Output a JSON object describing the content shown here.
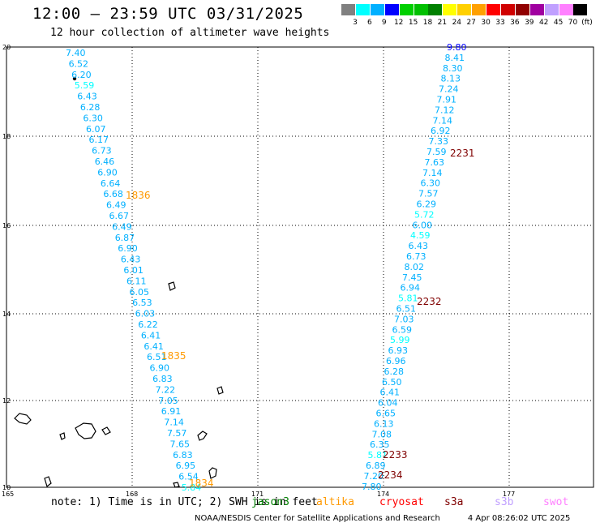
{
  "header": {
    "title": "12:00 – 23:59 UTC 03/31/2025",
    "subtitle": "12 hour collection of altimeter wave heights"
  },
  "legend": {
    "unit": "(ft)",
    "bins": [
      {
        "label": "3",
        "color": "#808080"
      },
      {
        "label": "6",
        "color": "#00ffff"
      },
      {
        "label": "9",
        "color": "#00b0ff"
      },
      {
        "label": "12",
        "color": "#0000ff"
      },
      {
        "label": "15",
        "color": "#00d000"
      },
      {
        "label": "18",
        "color": "#00c000"
      },
      {
        "label": "21",
        "color": "#008000"
      },
      {
        "label": "24",
        "color": "#ffff00"
      },
      {
        "label": "27",
        "color": "#ffd000"
      },
      {
        "label": "30",
        "color": "#ffa000"
      },
      {
        "label": "33",
        "color": "#ff0000"
      },
      {
        "label": "36",
        "color": "#d00000"
      },
      {
        "label": "39",
        "color": "#900000"
      },
      {
        "label": "42",
        "color": "#a000a0"
      },
      {
        "label": "45",
        "color": "#c0a0ff"
      },
      {
        "label": "70",
        "color": "#ff80ff"
      },
      {
        "label": "",
        "color": "#000000"
      }
    ]
  },
  "map": {
    "lat_ticks": [
      "20",
      "18",
      "16",
      "14",
      "12",
      "10"
    ],
    "lon_ticks": [
      "165",
      "168",
      "171",
      "174",
      "177"
    ],
    "track_west": {
      "values": [
        "7.40",
        "6.52",
        "6.20",
        "5.59",
        "6.43",
        "6.28",
        "6.30",
        "6.07",
        "6.17",
        "6.73",
        "6.46",
        "6.90",
        "6.64",
        "6.68",
        "6.49",
        "6.67",
        "6.49",
        "6.87",
        "6.90",
        "6.43",
        "6.01",
        "6.11",
        "6.05",
        "6.53",
        "6.03",
        "6.22",
        "6.41",
        "6.41",
        "6.51",
        "6.90",
        "6.83",
        "7.22",
        "7.05",
        "6.91",
        "7.14",
        "7.57",
        "7.65",
        "6.83",
        "6.95",
        "6.54",
        "5.84"
      ],
      "time_labels": [
        {
          "text": "1836",
          "color": "#ff9900"
        },
        {
          "text": "1835",
          "color": "#ff9900"
        },
        {
          "text": "1834",
          "color": "#ff9900"
        }
      ]
    },
    "track_east": {
      "values": [
        "9.80",
        "8.41",
        "8.30",
        "8.13",
        "7.24",
        "7.91",
        "7.12",
        "7.14",
        "6.92",
        "7.33",
        "7.59",
        "7.63",
        "7.14",
        "6.30",
        "7.57",
        "6.29",
        "5.72",
        "6.00",
        "4.59",
        "6.43",
        "6.73",
        "8.02",
        "7.45",
        "6.94",
        "5.81",
        "6.51",
        "7.03",
        "6.59",
        "5.99",
        "6.93",
        "6.96",
        "6.28",
        "6.50",
        "6.41",
        "6.04",
        "6.65",
        "6.13",
        "7.08",
        "6.35",
        "5.81",
        "6.89",
        "7.20",
        "7.80"
      ],
      "time_labels": [
        {
          "text": "2231",
          "color": "#800000"
        },
        {
          "text": "2232",
          "color": "#800000"
        },
        {
          "text": "2233",
          "color": "#800000"
        },
        {
          "text": "2234",
          "color": "#800000"
        }
      ]
    }
  },
  "note": "note: 1) Time is in UTC; 2) SWH is in feet",
  "satellites": [
    {
      "name": "jason3",
      "color": "#008000"
    },
    {
      "name": "altika",
      "color": "#ff9900"
    },
    {
      "name": "cryosat",
      "color": "#ff0000"
    },
    {
      "name": "s3a",
      "color": "#800000"
    },
    {
      "name": "s3b",
      "color": "#c0a0ff"
    },
    {
      "name": "swot",
      "color": "#ff80ff"
    }
  ],
  "footer": {
    "credit": "NOAA/NESDIS Center for Satellite Applications and Research",
    "timestamp": "4 Apr 08:26:02 UTC 2025"
  }
}
